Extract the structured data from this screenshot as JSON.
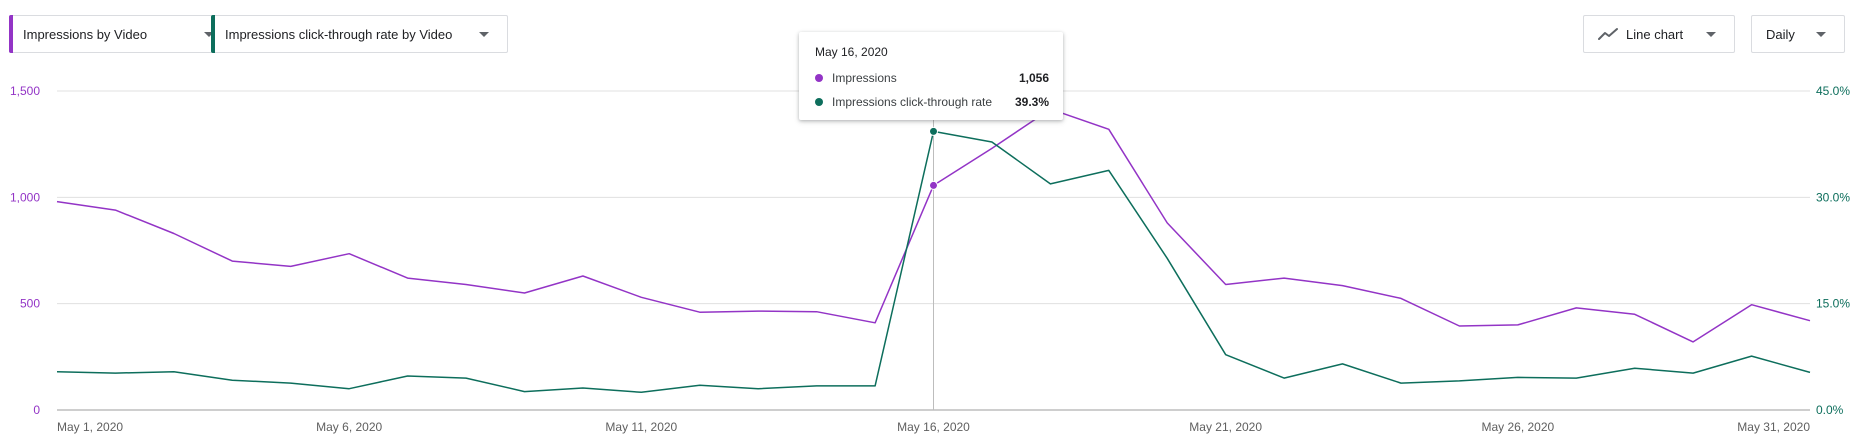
{
  "controls": {
    "metric1_label": "Impressions by Video",
    "metric2_label": "Impressions click-through rate by Video",
    "chart_type_label": "Line chart",
    "chart_type_icon": "line-chart-icon",
    "period_label": "Daily",
    "metric1_color": "#9334c6",
    "metric2_color": "#0d6e5c"
  },
  "tooltip": {
    "date": "May 16, 2020",
    "rows": [
      {
        "name": "Impressions",
        "value": "1,056",
        "color": "#9334c6"
      },
      {
        "name": "Impressions click-through rate",
        "value": "39.3%",
        "color": "#0d6e5c"
      }
    ]
  },
  "chart_data": {
    "type": "line",
    "x": [
      "May 1",
      "May 2",
      "May 3",
      "May 4",
      "May 5",
      "May 6",
      "May 7",
      "May 8",
      "May 9",
      "May 10",
      "May 11",
      "May 12",
      "May 13",
      "May 14",
      "May 15",
      "May 16",
      "May 17",
      "May 18",
      "May 19",
      "May 20",
      "May 21",
      "May 22",
      "May 23",
      "May 24",
      "May 25",
      "May 26",
      "May 27",
      "May 28",
      "May 29",
      "May 30",
      "May 31"
    ],
    "x_tick_labels": [
      {
        "index": 0,
        "label": "May 1, 2020"
      },
      {
        "index": 5,
        "label": "May 6, 2020"
      },
      {
        "index": 10,
        "label": "May 11, 2020"
      },
      {
        "index": 15,
        "label": "May 16, 2020"
      },
      {
        "index": 20,
        "label": "May 21, 2020"
      },
      {
        "index": 25,
        "label": "May 26, 2020"
      },
      {
        "index": 30,
        "label": "May 31, 2020"
      }
    ],
    "left_axis": {
      "ticks": [
        "0",
        "500",
        "1,000",
        "1,500"
      ],
      "ylim": [
        0,
        1500
      ],
      "color": "#9334c6"
    },
    "right_axis": {
      "ticks": [
        "0.0%",
        "15.0%",
        "30.0%",
        "45.0%"
      ],
      "ylim": [
        0,
        45
      ],
      "color": "#0d6e5c"
    },
    "series": [
      {
        "name": "Impressions",
        "axis": "left",
        "color": "#9334c6",
        "values": [
          980,
          940,
          830,
          700,
          675,
          735,
          620,
          590,
          550,
          630,
          530,
          460,
          465,
          462,
          410,
          1056,
          1230,
          1415,
          1320,
          880,
          590,
          620,
          585,
          525,
          395,
          400,
          480,
          450,
          320,
          495,
          420
        ]
      },
      {
        "name": "Impressions click-through rate",
        "axis": "right",
        "color": "#0d6e5c",
        "values": [
          5.4,
          5.2,
          5.4,
          4.2,
          3.8,
          3.0,
          4.8,
          4.5,
          2.6,
          3.1,
          2.5,
          3.5,
          3.0,
          3.4,
          3.4,
          39.3,
          37.8,
          31.9,
          33.8,
          21.4,
          7.8,
          4.5,
          6.5,
          3.8,
          4.1,
          4.6,
          4.5,
          5.9,
          5.2,
          7.6,
          5.3
        ]
      }
    ],
    "highlight_index": 15,
    "grid": true,
    "gridline_color": "#e0e0e0"
  }
}
